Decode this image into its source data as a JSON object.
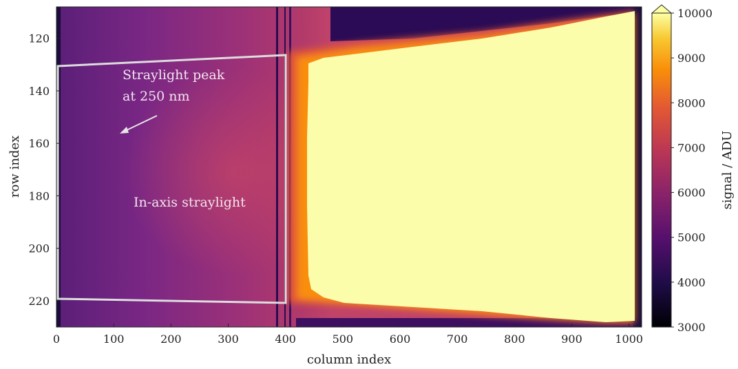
{
  "chart_data": {
    "type": "heatmap",
    "title": "",
    "xlabel": "column index",
    "ylabel": "row index",
    "colorbar_label": "signal / ADU",
    "x_range": [
      0,
      1022
    ],
    "y_range": [
      108,
      230
    ],
    "y_inverted": true,
    "x_ticks": [
      0,
      100,
      200,
      300,
      400,
      500,
      600,
      700,
      800,
      900,
      1000
    ],
    "y_ticks": [
      120,
      140,
      160,
      180,
      200,
      220
    ],
    "colorbar_ticks": [
      3000,
      4000,
      5000,
      6000,
      7000,
      8000,
      9000,
      10000
    ],
    "colorbar_range": [
      3000,
      10000
    ],
    "colorbar_extend": "max",
    "colormap": "inferno",
    "saturated_region": {
      "description_value_min": 10000,
      "left_edge_column": 430,
      "right_edge_column": 1010,
      "top_edge_rows": [
        [
          430,
          124
        ],
        [
          600,
          118
        ],
        [
          800,
          112
        ],
        [
          1010,
          109
        ]
      ],
      "bottom_edge_rows": [
        [
          430,
          220
        ],
        [
          600,
          223
        ],
        [
          800,
          226
        ],
        [
          1010,
          229
        ]
      ]
    },
    "annotations": [
      {
        "text_line1": "Straylight peak",
        "text_line2": "at 250 nm",
        "arrow_to": [
          100,
          155
        ]
      },
      {
        "text": "In-axis straylight",
        "at": [
          195,
          180
        ]
      }
    ],
    "roi_box": {
      "corners": [
        [
          0,
          128
        ],
        [
          400,
          125
        ],
        [
          400,
          221
        ],
        [
          0,
          218
        ]
      ]
    }
  }
}
